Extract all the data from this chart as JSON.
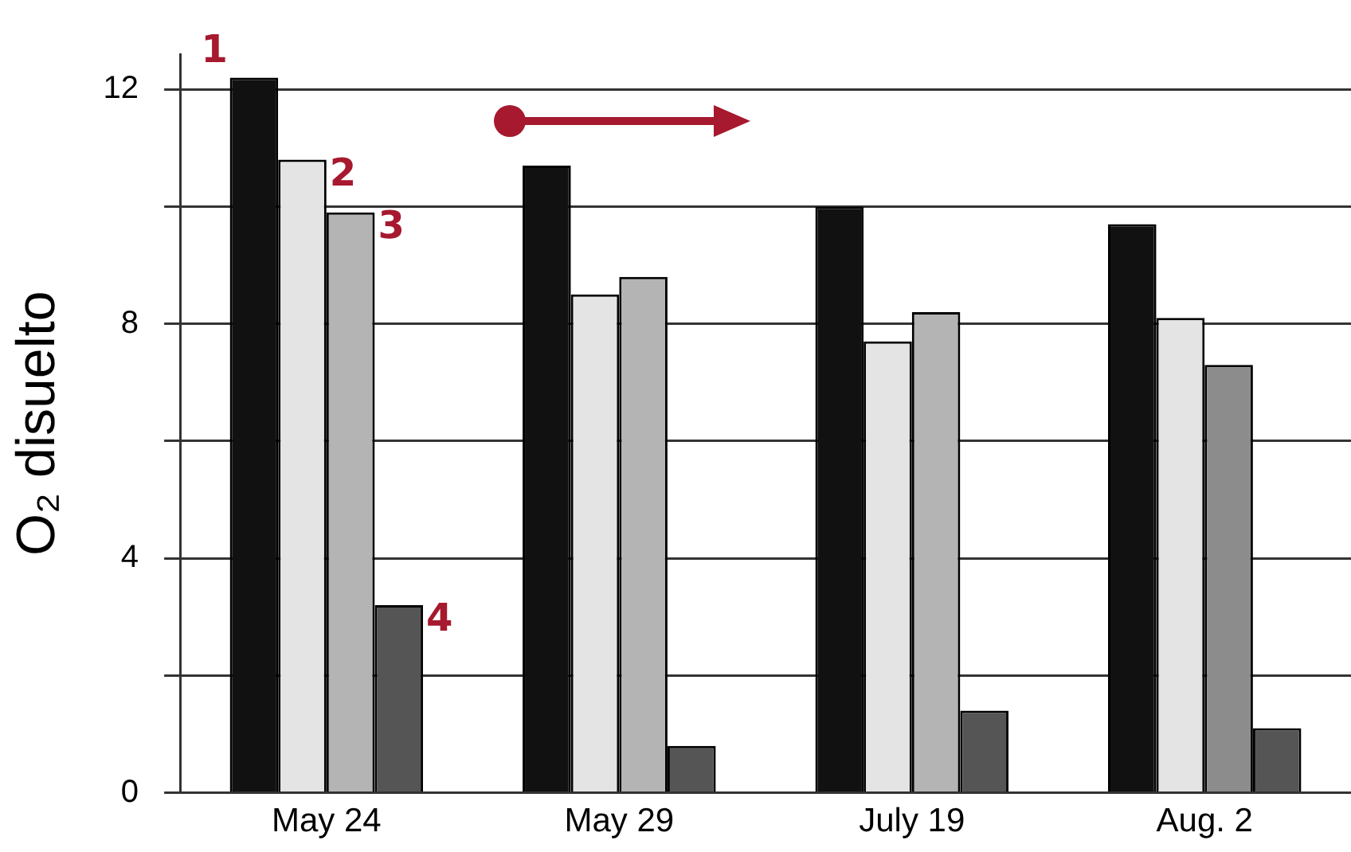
{
  "chart_data": {
    "type": "bar",
    "ylabel": "O₂ disuelto",
    "categories": [
      "May 24",
      "May 29",
      "July 19",
      "Aug. 2"
    ],
    "series": [
      {
        "name": "1",
        "color": "#111111",
        "values": [
          12.2,
          10.7,
          10.0,
          9.7
        ]
      },
      {
        "name": "2",
        "color": "#e4e4e4",
        "values": [
          10.8,
          8.5,
          7.7,
          8.1
        ]
      },
      {
        "name": "3",
        "colors": [
          "#b4b4b4",
          "#b4b4b4",
          "#b4b4b4",
          "#8c8c8c"
        ],
        "values": [
          9.9,
          8.8,
          8.2,
          7.3
        ]
      },
      {
        "name": "4",
        "color": "#555555",
        "values": [
          3.2,
          0.8,
          1.4,
          1.1
        ]
      }
    ],
    "ylim": [
      0,
      12.6
    ],
    "yticks": [
      0,
      {
        "value": 2,
        "label": null
      },
      4,
      {
        "value": 6,
        "label": null
      },
      8,
      {
        "value": 10,
        "label": null
      },
      12
    ],
    "grid": "y",
    "legend": false
  }
}
